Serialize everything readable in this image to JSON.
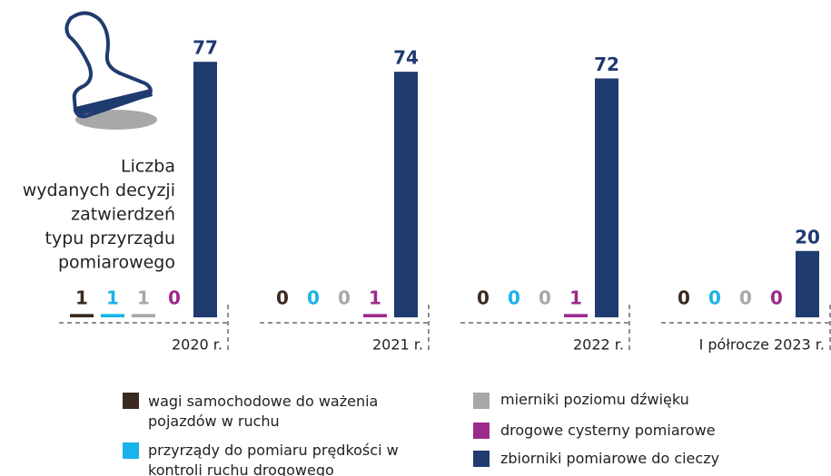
{
  "chart_data": {
    "type": "bar",
    "title": [
      "Liczba",
      "wydanych decyzji",
      "zatwierdzeń",
      "typu przyrządu",
      "pomiarowego"
    ],
    "categories": [
      "2020 r.",
      "2021 r.",
      "2022 r.",
      "I półrocze 2023 r."
    ],
    "series": [
      {
        "name": "wagi samochodowe do ważenia pojazdów w ruchu",
        "color": "#3b2a1f",
        "values": [
          1,
          0,
          0,
          0
        ]
      },
      {
        "name": "przyrządy do pomiaru prędkości w kontroli ruchu drogowego",
        "color": "#1ab2ea",
        "values": [
          1,
          0,
          0,
          0
        ]
      },
      {
        "name": "mierniki poziomu dźwięku",
        "color": "#a8a8a8",
        "values": [
          1,
          0,
          0,
          0
        ]
      },
      {
        "name": "drogowe cysterny pomiarowe",
        "color": "#9c2a8c",
        "values": [
          0,
          1,
          1,
          0
        ]
      },
      {
        "name": "zbiorniki pomiarowe do cieczy",
        "color": "#1f3b6f",
        "values": [
          77,
          74,
          72,
          20
        ]
      }
    ]
  }
}
